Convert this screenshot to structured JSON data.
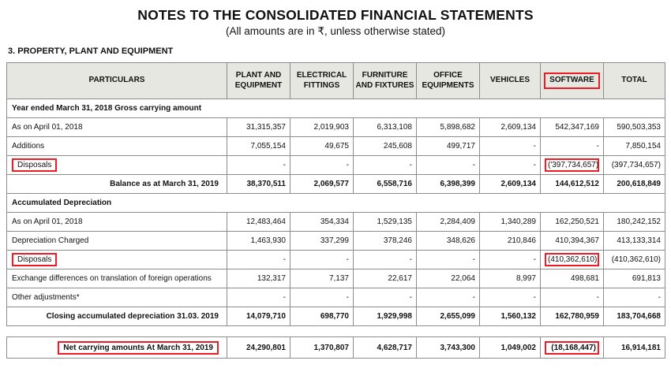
{
  "title": "NOTES TO THE CONSOLIDATED FINANCIAL STATEMENTS",
  "subtitle": "(All amounts are in ₹, unless otherwise stated)",
  "section_heading": "3. PROPERTY, PLANT AND EQUIPMENT",
  "colors": {
    "highlight_box": "#ed1c24",
    "header_bg": "#e7e7e1",
    "border": "#8c8c8c"
  },
  "table": {
    "columns": [
      {
        "label": "PARTICULARS"
      },
      {
        "label": "PLANT AND EQUIPMENT"
      },
      {
        "label": "ELECTRICAL FITTINGS"
      },
      {
        "label": "FURNITURE AND FIXTURES"
      },
      {
        "label": "OFFICE EQUIPMENTS"
      },
      {
        "label": "VEHICLES"
      },
      {
        "label": "SOFTWARE",
        "highlighted": true
      },
      {
        "label": "TOTAL"
      }
    ],
    "rows": [
      {
        "type": "section",
        "label": "Year ended March 31, 2018 Gross carrying amount"
      },
      {
        "type": "data",
        "label": "As on April 01, 2018",
        "values": [
          "31,315,357",
          "2,019,903",
          "6,313,108",
          "5,898,682",
          "2,609,134",
          "542,347,169",
          "590,503,353"
        ]
      },
      {
        "type": "data",
        "label": "Additions",
        "values": [
          "7,055,154",
          "49,675",
          "245,608",
          "499,717",
          "-",
          "-",
          "7,850,154"
        ]
      },
      {
        "type": "data",
        "label": "Disposals",
        "label_highlighted": true,
        "values": [
          "-",
          "-",
          "-",
          "-",
          "-",
          "('397,734,657)",
          "(397,734,657)"
        ],
        "highlight_cols": [
          5
        ]
      },
      {
        "type": "total",
        "label": "Balance as at March 31, 2019",
        "values": [
          "38,370,511",
          "2,069,577",
          "6,558,716",
          "6,398,399",
          "2,609,134",
          "144,612,512",
          "200,618,849"
        ]
      },
      {
        "type": "section",
        "label": "Accumulated Depreciation"
      },
      {
        "type": "data",
        "label": "As on April 01, 2018",
        "values": [
          "12,483,464",
          "354,334",
          "1,529,135",
          "2,284,409",
          "1,340,289",
          "162,250,521",
          "180,242,152"
        ]
      },
      {
        "type": "data",
        "label": "Depreciation Charged",
        "values": [
          "1,463,930",
          "337,299",
          "378,246",
          "348,626",
          "210,846",
          "410,394,367",
          "413,133,314"
        ]
      },
      {
        "type": "data",
        "label": "Disposals",
        "label_highlighted": true,
        "values": [
          "-",
          "-",
          "-",
          "-",
          "-",
          "(410,362,610)",
          "(410,362,610)"
        ],
        "highlight_cols": [
          5
        ]
      },
      {
        "type": "data",
        "label": "Exchange differences on translation of foreign operations",
        "values": [
          "132,317",
          "7,137",
          "22,617",
          "22,064",
          "8,997",
          "498,681",
          "691,813"
        ]
      },
      {
        "type": "data",
        "label": "Other adjustments*",
        "values": [
          "-",
          "-",
          "-",
          "-",
          "-",
          "-",
          "-"
        ]
      },
      {
        "type": "total",
        "label": "Closing accumulated depreciation 31.03. 2019",
        "values": [
          "14,079,710",
          "698,770",
          "1,929,998",
          "2,655,099",
          "1,560,132",
          "162,780,959",
          "183,704,668"
        ]
      }
    ]
  },
  "net_row": {
    "type": "net",
    "label": "Net carrying amounts At March 31, 2019",
    "label_highlighted": true,
    "values": [
      "24,290,801",
      "1,370,807",
      "4,628,717",
      "3,743,300",
      "1,049,002",
      "(18,168,447)",
      "16,914,181"
    ],
    "highlight_cols": [
      5
    ]
  }
}
